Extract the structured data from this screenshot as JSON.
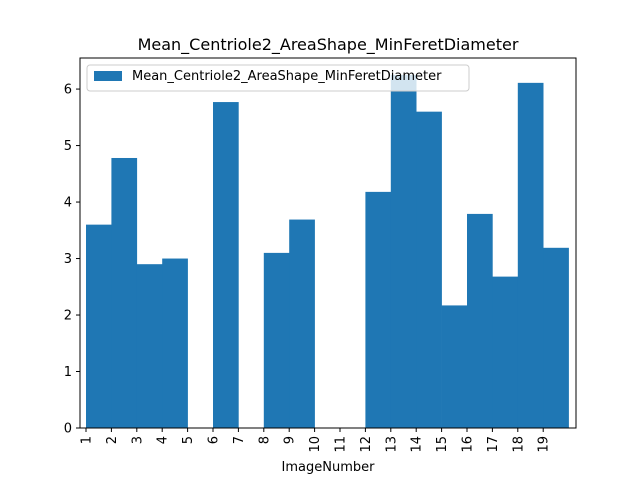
{
  "chart_data": {
    "type": "bar",
    "title": "Mean_Centriole2_AreaShape_MinFeretDiameter",
    "xlabel": "ImageNumber",
    "ylabel": "",
    "categories": [
      "1",
      "2",
      "3",
      "4",
      "5",
      "6",
      "7",
      "8",
      "9",
      "10",
      "11",
      "12",
      "13",
      "14",
      "15",
      "16",
      "17",
      "18",
      "19"
    ],
    "series": [
      {
        "name": "Mean_Centriole2_AreaShape_MinFeretDiameter",
        "values": [
          3.6,
          4.78,
          2.9,
          3.0,
          0,
          5.77,
          0,
          3.1,
          3.69,
          0,
          0,
          4.18,
          6.25,
          5.6,
          2.17,
          3.79,
          2.68,
          6.11,
          3.19
        ],
        "color": "#1f77b4"
      }
    ],
    "ylim": [
      0,
      6.55
    ],
    "yticks": [
      0,
      1,
      2,
      3,
      4,
      5,
      6
    ],
    "legend_position": "top-left",
    "grid": false
  }
}
